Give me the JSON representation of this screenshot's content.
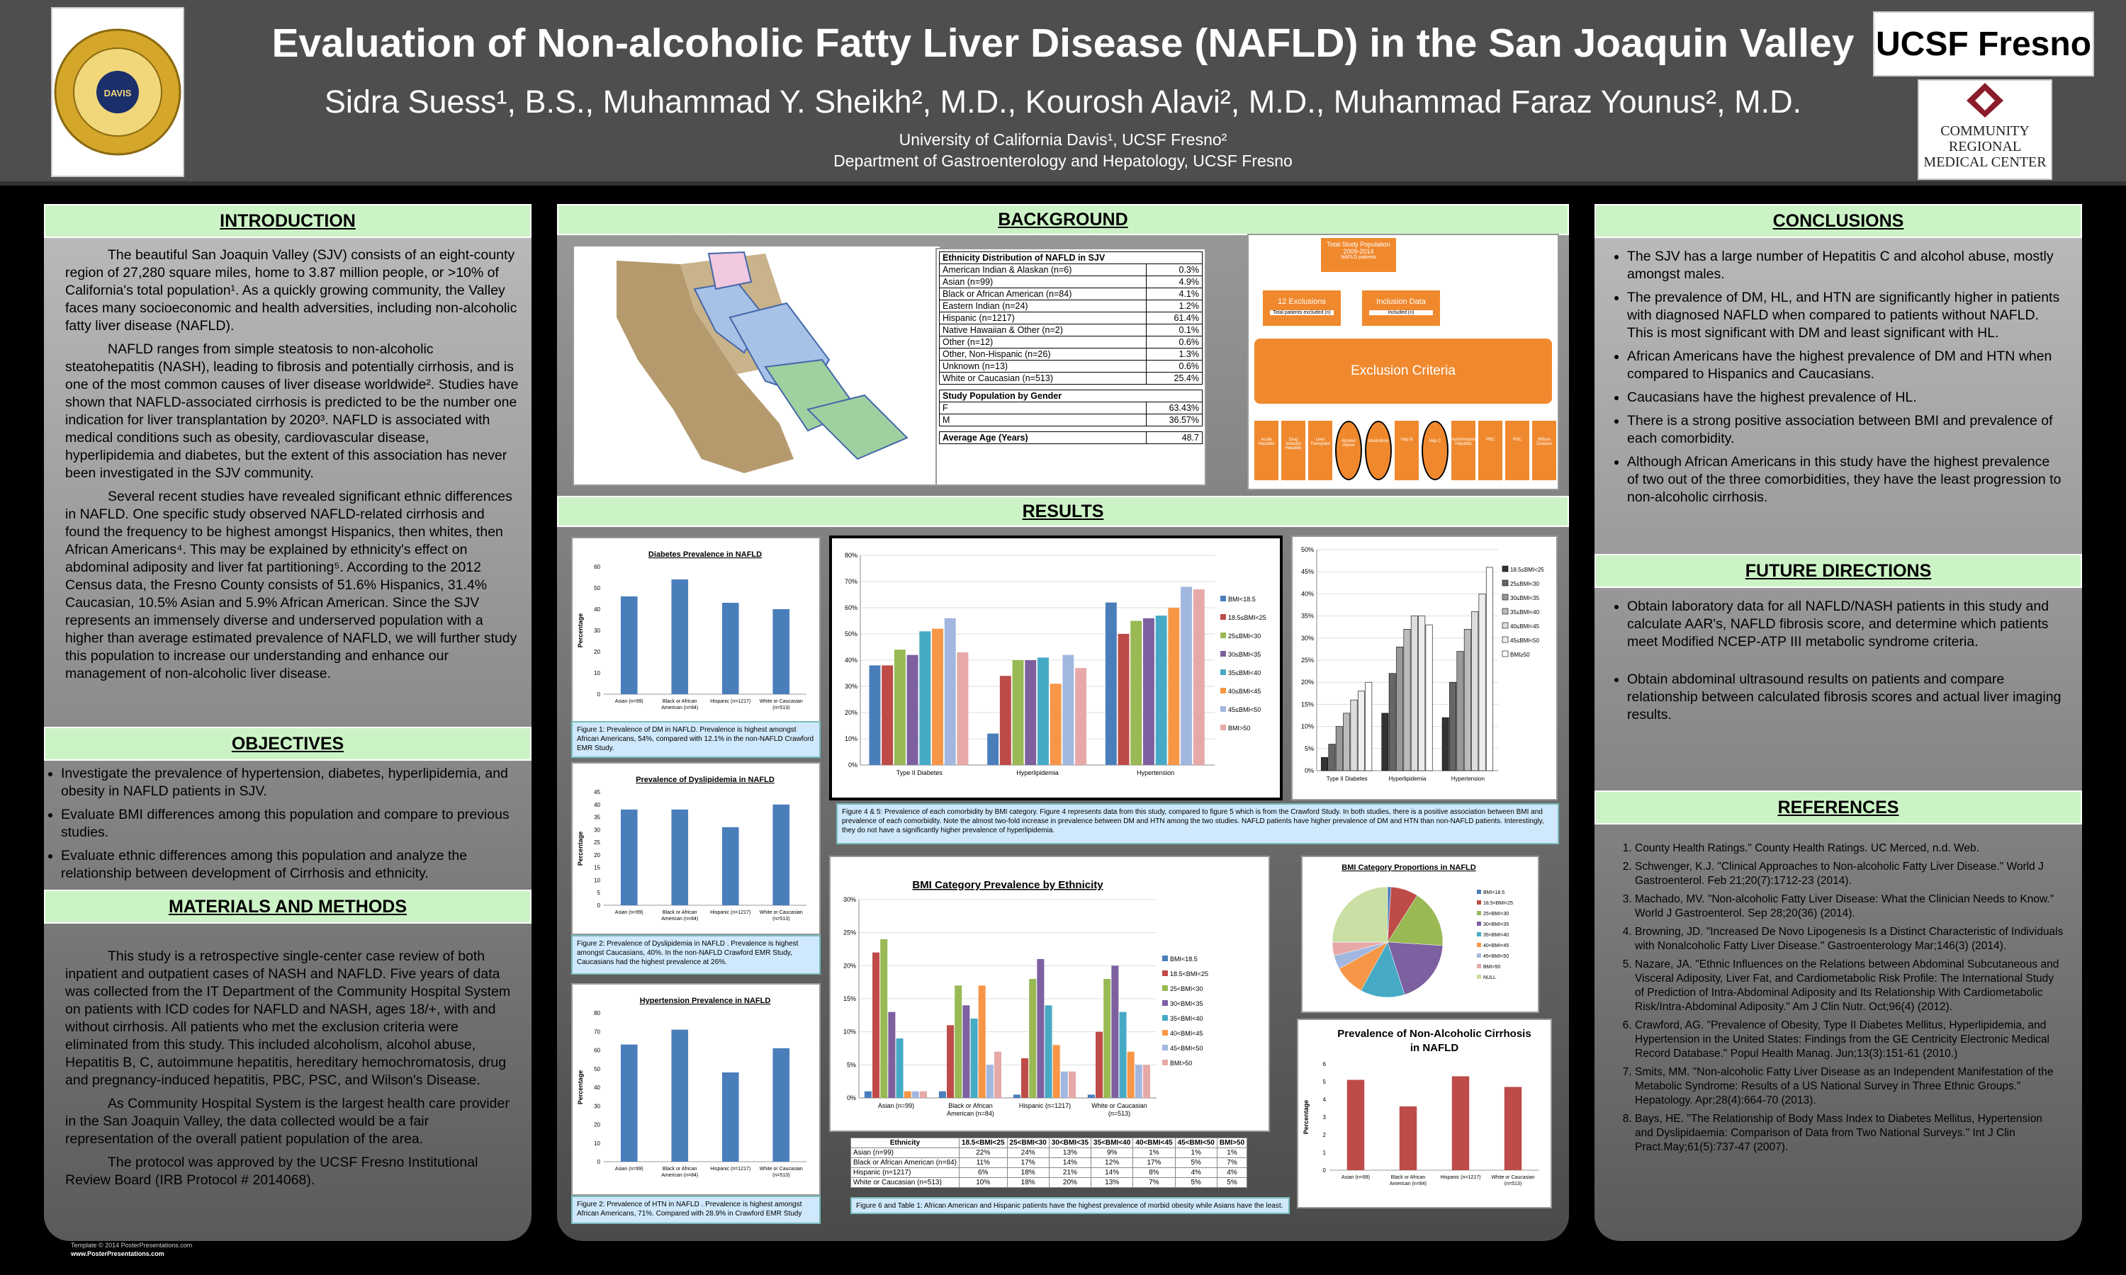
{
  "header": {
    "title": "Evaluation of Non-alcoholic Fatty Liver Disease (NAFLD) in the San Joaquin Valley",
    "authors": "Sidra Suess¹, B.S., Muhammad Y. Sheikh², M.D., Kourosh Alavi², M.D., Muhammad Faraz Younus², M.D.",
    "affil1": "University of California Davis¹, UCSF Fresno²",
    "affil2": "Department of Gastroenterology and Hepatology, UCSF Fresno",
    "seal_text": "THE UNIVERSITY OF CALIFORNIA · DAVIS",
    "logo1": "UCSF Fresno",
    "logo2": "COMMUNITY REGIONAL MEDICAL CENTER"
  },
  "intro": {
    "heading": "INTRODUCTION",
    "p1": "The beautiful San Joaquin Valley (SJV) consists of an eight-county region of 27,280 square miles, home to 3.87 million people, or >10% of California's total population¹. As a quickly growing community, the Valley faces many socioeconomic and health adversities, including non-alcoholic fatty liver disease (NAFLD).",
    "p2": "NAFLD ranges from simple steatosis to non-alcoholic steatohepatitis (NASH), leading to fibrosis and potentially cirrhosis, and is one of the most common causes of liver disease worldwide². Studies have shown that NAFLD-associated cirrhosis is predicted to be the number one indication for liver transplantation by 2020³. NAFLD is associated with medical conditions such as obesity, cardiovascular disease, hyperlipidemia and diabetes, but the extent of this association has never been investigated in the SJV community.",
    "p3": "Several recent studies have revealed significant ethnic differences in NAFLD. One specific study observed NAFLD-related cirrhosis and found the frequency to be highest amongst Hispanics, then whites, then African Americans⁴. This may be explained by ethnicity's effect on abdominal adiposity and liver fat partitioning⁵. According to the 2012 Census data, the Fresno County consists of 51.6% Hispanics, 31.4% Caucasian, 10.5% Asian and 5.9% African American. Since the SJV represents an immensely diverse and underserved population with a higher than average estimated prevalence of NAFLD, we will further study this population to increase our understanding and enhance our management of non-alcoholic liver disease."
  },
  "objectives": {
    "heading": "OBJECTIVES",
    "items": [
      "Investigate the prevalence of hypertension, diabetes, hyperlipidemia, and obesity in NAFLD patients in SJV.",
      "Evaluate BMI differences among this population and compare to previous studies.",
      "Evaluate ethnic differences among this population and  analyze the relationship between development of Cirrhosis and ethnicity."
    ]
  },
  "methods": {
    "heading": "MATERIALS AND METHODS",
    "p1": "This study is a retrospective single-center case review of both inpatient and outpatient cases of NASH and NAFLD.  Five years of data was collected from the IT Department of the Community Hospital System on patients with ICD codes for NAFLD and NASH, ages 18/+, with and without cirrhosis. All patients who met the exclusion criteria were eliminated from this study. This included alcoholism, alcohol abuse, Hepatitis B, C, autoimmune hepatitis, hereditary hemochromatosis, drug and pregnancy-induced hepatitis, PBC, PSC, and Wilson's Disease.",
    "p2": "As Community Hospital System is the largest health care provider in the San Joaquin Valley, the data collected would be a fair representation of the overall patient population of the area.",
    "p3": "The protocol was approved by the UCSF Fresno Institutional Review Board (IRB Protocol # 2014068)."
  },
  "footer": {
    "line1": "Template © 2014 PosterPresentations.com",
    "line2": "www.PosterPresentations.com"
  },
  "background": {
    "heading": "BACKGROUND",
    "eth_title": "Ethnicity Distribution of NAFLD in SJV",
    "eth_rows": [
      [
        "American Indian & Alaskan (n=6)",
        "0.3%"
      ],
      [
        "Asian (n=99)",
        "4.9%"
      ],
      [
        "Black or African American (n=84)",
        "4.1%"
      ],
      [
        "Eastern Indian (n=24)",
        "1.2%"
      ],
      [
        "Hispanic (n=1217)",
        "61.4%"
      ],
      [
        "Native Hawaiian & Other  (n=2)",
        "0.1%"
      ],
      [
        "Other (n=12)",
        "0.6%"
      ],
      [
        "Other, Non-Hispanic (n=26)",
        "1.3%"
      ],
      [
        "Unknown (n=13)",
        "0.6%"
      ],
      [
        "White or Caucasian (n=513)",
        "25.4%"
      ]
    ],
    "gender_title": "Study Population by Gender",
    "gender_rows": [
      [
        "F",
        "63.43%"
      ],
      [
        "M",
        "36.57%"
      ]
    ],
    "age_label": "Average Age (Years)",
    "age_value": "48.7",
    "flow_top": "Total Study Population 2009-2014",
    "flow_sub": "NAFLD patients",
    "flow_left": "12 Exclusions",
    "flow_right": "Inclusion Data",
    "flow_left_sub": "Total patients excluded (n)",
    "flow_right_sub": "Included (n)",
    "exclusion": "Exclusion Criteria",
    "excl_items": [
      "Acute Hepatitis",
      "Drug Induced Hepatitis",
      "Liver Transplant",
      "Alcohol Abuse",
      "Alcoholism",
      "Hep B",
      "Hep C",
      "Autoimmune Hepatitis",
      "PBC",
      "PSC",
      "Wilson Disease"
    ]
  },
  "results": {
    "heading": "RESULTS",
    "fig1_title": "Diabetes Prevalence in NAFLD",
    "fig1_cap": "Figure 1: Prevalence of DM in NAFLD. Prevalence is highest amongst African Americans, 54%, compared with 12.1% in the non-NAFLD Crawford EMR Study.",
    "fig2_title": "Prevalence of Dyslipidemia in NAFLD",
    "fig2_cap": "Figure 2: Prevalence of Dyslipidemia in NAFLD . Prevalence is highest amongst Caucasians, 40%. In the non-NAFLD Crawford EMR Study, Caucasians had the highest prevalence at 26%.",
    "fig3_title": "Hypertension Prevalence in NAFLD",
    "fig3_cap": "Figure 2: Prevalence of HTN in NAFLD . Prevalence is highest amongst African Americans, 71%. Compared with 28.9% in Crawford EMR Study",
    "fig45_cap": "Figure 4 & 5: Prevalence of each comorbidity by BMI category. Figure 4 represents data from this study, compared to figure 5 which is from the Crawford Study. In both studies, there is a positive association between BMI and prevalence of each comorbidity. Note the almost two-fold increase in prevalence between DM and HTN among the two studies. NAFLD patients have higher prevalence of DM and HTN than non-NAFLD patients. Interestingly, they do not have a significantly higher prevalence of hyperlipidemia.",
    "fig6_title": "BMI Category Prevalence by Ethnicity",
    "pie_title": "BMI Category Proportions in NAFLD",
    "cirr_title": "Prevalence of Non-Alcoholic Cirrhosis in NAFLD",
    "fig6_cap": "Figure 6 and Table 1: African American and Hispanic patients have the highest prevalence of morbid obesity while Asians have the least.",
    "ylabel": "Percentage",
    "table_header": [
      "Ethnicity",
      "18.5<BMI<25",
      "25<BMI<30",
      "30<BMI<35",
      "35<BMI<40",
      "40<BMI<45",
      "45<BMI<50",
      "BMI>50"
    ],
    "table_rows": [
      [
        "Asian (n=99)",
        "22%",
        "24%",
        "13%",
        "9%",
        "1%",
        "1%",
        "1%"
      ],
      [
        "Black or African American (n=84)",
        "11%",
        "17%",
        "14%",
        "12%",
        "17%",
        "5%",
        "7%"
      ],
      [
        "Hispanic (n=1217)",
        "6%",
        "18%",
        "21%",
        "14%",
        "8%",
        "4%",
        "4%"
      ],
      [
        "White or Caucasian (n=513)",
        "10%",
        "18%",
        "20%",
        "13%",
        "7%",
        "5%",
        "5%"
      ]
    ]
  },
  "conclusions": {
    "heading": "CONCLUSIONS",
    "items": [
      "The SJV has a large number of Hepatitis C and alcohol abuse, mostly amongst males.",
      "The prevalence of DM, HL, and HTN are significantly higher in patients with diagnosed NAFLD when compared to patients without NAFLD.  This is most significant with DM and least significant with HL.",
      "African Americans have the highest prevalence of DM and HTN when compared to Hispanics and Caucasians.",
      "Caucasians have the highest prevalence of HL.",
      "There is a strong positive association between BMI and prevalence of each comorbidity.",
      "Although African Americans in this study have the highest prevalence of two out of the three comorbidities, they have the least progression to non-alcoholic cirrhosis."
    ]
  },
  "future": {
    "heading": "FUTURE DIRECTIONS",
    "items": [
      "Obtain laboratory data for all NAFLD/NASH patients in this study and calculate AAR's, NAFLD fibrosis score, and determine which patients meet Modified NCEP-ATP III metabolic syndrome criteria.",
      "Obtain abdominal ultrasound results on patients and compare relationship between calculated fibrosis scores and actual liver imaging results."
    ]
  },
  "references": {
    "heading": "REFERENCES",
    "items": [
      "County Health Ratings.\" County Health Ratings. UC Merced, n.d. Web.",
      "Schwenger, K.J. \"Clinical Approaches to Non-alcoholic Fatty Liver Disease.\" World J Gastroenterol. Feb 21;20(7):1712-23 (2014).",
      "Machado, MV. \"Non-alcoholic Fatty Liver Disease: What the Clinician Needs to Know.\" World J Gastroenterol. Sep 28;20(36) (2014).",
      "Browning, JD. \"Increased De Novo Lipogenesis Is a Distinct Characteristic of Individuals with Nonalcoholic Fatty Liver Disease.\" Gastroenterology Mar;146(3) (2014).",
      "Nazare, JA. \"Ethnic Influences on the Relations between Abdominal Subcutaneous and Visceral Adiposity, Liver Fat, and Cardiometabolic Risk Profile: The International Study of Prediction of Intra-Abdominal Adiposity and Its Relationship With Cardiometabolic Risk/Intra-Abdominal Adiposity.\" Am J Clin Nutr. Oct;96(4) (2012).",
      "Crawford, AG. \"Prevalence of Obesity, Type II Diabetes Mellitus, Hyperlipidemia, and Hypertension in the United States: Findings from the GE Centricity Electronic Medical Record Database.\" Popul Health Manag. Jun;13(3):151-61 (2010.)",
      "Smits, MM. \"Non-alcoholic Fatty Liver Disease as an Independent Manifestation of the Metabolic Syndrome: Results of a US National Survey in Three Ethnic Groups.\" Hepatology. Apr;28(4):664-70 (2013).",
      "Bays, HE. \"The Relationship of Body Mass Index to Diabetes Mellitus, Hypertension and Dyslipidaemia: Comparison of Data from Two National Surveys.\" Int J Clin Pract.May;61(5):737-47 (2007)."
    ]
  },
  "chart_data": [
    {
      "id": "fig1",
      "type": "bar",
      "title": "Diabetes Prevalence in NAFLD",
      "ylabel": "Percentage",
      "categories": [
        "Asian (n=99)",
        "Black or African American (n=84)",
        "Hispanic (n=1217)",
        "White or Caucasian (n=513)"
      ],
      "values": [
        46,
        54,
        43,
        40
      ],
      "ylim": [
        0,
        60
      ],
      "ticks": [
        0,
        10,
        20,
        30,
        40,
        50,
        60
      ],
      "color": "#4a7ebb"
    },
    {
      "id": "fig2",
      "type": "bar",
      "title": "Prevalence of Dyslipidemia in NAFLD",
      "ylabel": "Percentage",
      "categories": [
        "Asian (n=99)",
        "Black or African American (n=84)",
        "Hispanic (n=1217)",
        "White or Caucasian (n=513)"
      ],
      "values": [
        38,
        38,
        31,
        40
      ],
      "ylim": [
        0,
        45
      ],
      "ticks": [
        0,
        5,
        10,
        15,
        20,
        25,
        30,
        35,
        40,
        45
      ],
      "color": "#4a7ebb"
    },
    {
      "id": "fig3",
      "type": "bar",
      "title": "Hypertension Prevalence in NAFLD",
      "ylabel": "Percentage",
      "categories": [
        "Asian (n=99)",
        "Black or African American (n=84)",
        "Hispanic (n=1217)",
        "White or Caucasian (n=513)"
      ],
      "values": [
        63,
        71,
        48,
        61
      ],
      "ylim": [
        0,
        80
      ],
      "ticks": [
        0,
        10,
        20,
        30,
        40,
        50,
        60,
        70,
        80
      ],
      "color": "#4a7ebb"
    },
    {
      "id": "fig4",
      "type": "bar",
      "ylim": [
        0,
        80
      ],
      "tick_labels": [
        "0%",
        "10%",
        "20%",
        "30%",
        "40%",
        "50%",
        "60%",
        "70%",
        "80%"
      ],
      "categories": [
        "Type II Diabetes",
        "Hyperlipidemia",
        "Hypertension"
      ],
      "series": [
        {
          "name": "BMI<18.5",
          "values": [
            38,
            12,
            62
          ],
          "color": "#4a7ebb"
        },
        {
          "name": "18.5≤BMI<25",
          "values": [
            38,
            34,
            50
          ],
          "color": "#be4b48"
        },
        {
          "name": "25≤BMI<30",
          "values": [
            44,
            40,
            55
          ],
          "color": "#98b954"
        },
        {
          "name": "30≤BMI<35",
          "values": [
            42,
            40,
            56
          ],
          "color": "#7d60a0"
        },
        {
          "name": "35≤BMI<40",
          "values": [
            51,
            41,
            57
          ],
          "color": "#46aac5"
        },
        {
          "name": "40≤BMI<45",
          "values": [
            52,
            31,
            60
          ],
          "color": "#f79646"
        },
        {
          "name": "45≤BMI<50",
          "values": [
            56,
            42,
            68
          ],
          "color": "#a2b7e0"
        },
        {
          "name": "BMI>50",
          "values": [
            43,
            37,
            67
          ],
          "color": "#e6a9a8"
        }
      ]
    },
    {
      "id": "fig5",
      "type": "bar",
      "ylim": [
        0,
        50
      ],
      "tick_labels": [
        "0%",
        "5%",
        "10%",
        "15%",
        "20%",
        "25%",
        "30%",
        "35%",
        "40%",
        "45%",
        "50%"
      ],
      "categories": [
        "Type II Diabetes",
        "Hyperlipidemia",
        "Hypertension"
      ],
      "series": [
        {
          "name": "18.5≤BMI<25",
          "values": [
            3,
            13,
            12
          ]
        },
        {
          "name": "25≤BMI<30",
          "values": [
            6,
            22,
            20
          ]
        },
        {
          "name": "30≤BMI<35",
          "values": [
            10,
            28,
            27
          ]
        },
        {
          "name": "35≤BMI<40",
          "values": [
            13,
            32,
            32
          ]
        },
        {
          "name": "40≤BMI<45",
          "values": [
            16,
            35,
            36
          ]
        },
        {
          "name": "45≤BMI<50",
          "values": [
            18,
            35,
            40
          ]
        },
        {
          "name": "BMI≥50",
          "values": [
            20,
            33,
            46
          ]
        }
      ]
    },
    {
      "id": "fig6",
      "type": "bar",
      "title": "BMI Category Prevalence by Ethnicity",
      "ylim": [
        0,
        30
      ],
      "tick_labels": [
        "0%",
        "5%",
        "10%",
        "15%",
        "20%",
        "25%",
        "30%"
      ],
      "categories": [
        "Asian (n=99)",
        "Black or African American (n=84)",
        "Hispanic (n=1217)",
        "White or Caucasian (n=513)"
      ],
      "series": [
        {
          "name": "BMI<18.5",
          "values": [
            1,
            1,
            0.5,
            0.5
          ],
          "color": "#4a7ebb"
        },
        {
          "name": "18.5<BMI<25",
          "values": [
            22,
            11,
            6,
            10
          ],
          "color": "#be4b48"
        },
        {
          "name": "25<BMI<30",
          "values": [
            24,
            17,
            18,
            18
          ],
          "color": "#98b954"
        },
        {
          "name": "30<BMI<35",
          "values": [
            13,
            14,
            21,
            20
          ],
          "color": "#7d60a0"
        },
        {
          "name": "35<BMI<40",
          "values": [
            9,
            12,
            14,
            13
          ],
          "color": "#46aac5"
        },
        {
          "name": "40<BMI<45",
          "values": [
            1,
            17,
            8,
            7
          ],
          "color": "#f79646"
        },
        {
          "name": "45<BMI<50",
          "values": [
            1,
            5,
            4,
            5
          ],
          "color": "#a2b7e0"
        },
        {
          "name": "BMI>50",
          "values": [
            1,
            7,
            4,
            5
          ],
          "color": "#e6a9a8"
        }
      ]
    },
    {
      "id": "pie",
      "type": "pie",
      "title": "BMI Category Proportions in NAFLD",
      "labels": [
        "BMI<18.5",
        "18.5<BMI<25",
        "25<BMI<30",
        "30<BMI<35",
        "35<BMI<40",
        "40<BMI<45",
        "45<BMI<50",
        "BMI>50",
        "NULL"
      ],
      "values": [
        1,
        8,
        17,
        19,
        13,
        9,
        4,
        4,
        25
      ],
      "colors": [
        "#4a7ebb",
        "#be4b48",
        "#98b954",
        "#7d60a0",
        "#46aac5",
        "#f79646",
        "#a2b7e0",
        "#e6a9a8",
        "#c9dfa4"
      ]
    },
    {
      "id": "cirr",
      "type": "bar",
      "title": "Prevalence of Non-Alcoholic Cirrhosis in NAFLD",
      "ylabel": "Percentage",
      "categories": [
        "Asian (n=99)",
        "Black or African American (n=84)",
        "Hispanic (n=1217)",
        "White or Caucasian (n=513)"
      ],
      "values": [
        5.1,
        3.6,
        5.3,
        4.7
      ],
      "ylim": [
        0,
        6
      ],
      "ticks": [
        0,
        1,
        2,
        3,
        4,
        5,
        6
      ],
      "color": "#be4b48"
    }
  ]
}
